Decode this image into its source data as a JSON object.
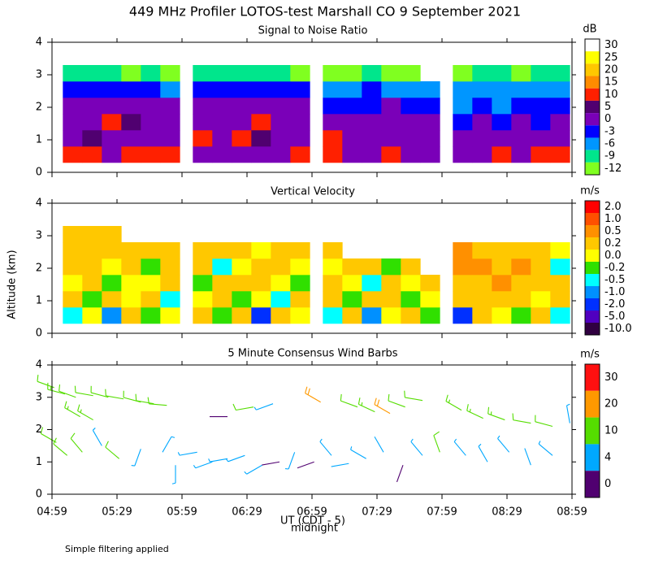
{
  "title": "449 MHz Profiler LOTOS-test Marshall CO  9 September 2021",
  "ylabel": "Altitude (km)",
  "xlabel": "UT (CDT - 5)",
  "xlabel_sub": "midnight",
  "footnote": "Simple filtering applied",
  "chart_data": [
    {
      "type": "heatmap",
      "title": "Signal to Noise Ratio",
      "xlim": [
        299,
        539
      ],
      "xticks": [
        299,
        329,
        359,
        389,
        419,
        449,
        479,
        509,
        539
      ],
      "ylim": [
        0,
        4
      ],
      "yticks": [
        0,
        1,
        2,
        3,
        4
      ],
      "xbins": [
        304,
        313,
        322,
        331,
        340,
        349,
        358,
        364,
        373,
        382,
        391,
        400,
        409,
        418,
        424,
        433,
        442,
        451,
        460,
        469,
        478,
        484,
        493,
        502,
        511,
        520,
        529,
        538
      ],
      "ybins": [
        0.3,
        0.8,
        1.3,
        1.8,
        2.3,
        2.8,
        3.3
      ],
      "values": [
        [
          12,
          4,
          3,
          2,
          -3,
          -9
        ],
        [
          13,
          5,
          4,
          1,
          -2,
          -8
        ],
        [
          4,
          3,
          13,
          3,
          -1,
          -9
        ],
        [
          10,
          2,
          5,
          4,
          -3,
          -10
        ],
        [
          11,
          4,
          3,
          2,
          -2,
          -9
        ],
        [
          14,
          3,
          4,
          3,
          -4,
          -10
        ],
        null,
        [
          3,
          11,
          2,
          4,
          -1,
          -8
        ],
        [
          2,
          4,
          3,
          2,
          -2,
          -9
        ],
        [
          4,
          12,
          3,
          1,
          -3,
          -7
        ],
        [
          3,
          5,
          11,
          2,
          -1,
          -8
        ],
        [
          2,
          4,
          3,
          3,
          -2,
          -9
        ],
        [
          13,
          3,
          2,
          1,
          -3,
          -10
        ],
        null,
        [
          12,
          11,
          3,
          -1,
          -4,
          -10
        ],
        [
          4,
          3,
          2,
          -2,
          -5,
          -11
        ],
        [
          3,
          2,
          3,
          -1,
          -3,
          -9
        ],
        [
          12,
          4,
          2,
          1,
          -4,
          -10
        ],
        [
          3,
          2,
          1,
          -2,
          -5,
          -11
        ],
        [
          4,
          3,
          2,
          -1,
          -4,
          null
        ],
        null,
        [
          3,
          2,
          -2,
          -4,
          -6,
          -10
        ],
        [
          4,
          3,
          1,
          -3,
          -5,
          -9
        ],
        [
          12,
          2,
          -1,
          -4,
          -6,
          -9
        ],
        [
          3,
          4,
          0,
          -3,
          -5,
          -10
        ],
        [
          11,
          3,
          -2,
          -2,
          -4,
          -9
        ],
        [
          13,
          4,
          2,
          -1,
          -4,
          -9
        ]
      ],
      "colorbar": {
        "label": "dB",
        "ticks": [
          30,
          25,
          20,
          15,
          10,
          5,
          0,
          -3,
          -6,
          -9,
          -12
        ],
        "colors": [
          "#ffffff",
          "#ffff00",
          "#ffc800",
          "#ff8c00",
          "#ff2000",
          "#500070",
          "#7a00b8",
          "#0000ff",
          "#0096ff",
          "#00e68c",
          "#80ff20"
        ]
      }
    },
    {
      "type": "heatmap",
      "title": "Vertical Velocity",
      "xlim": [
        299,
        539
      ],
      "xticks": [
        299,
        329,
        359,
        389,
        419,
        449,
        479,
        509,
        539
      ],
      "ylim": [
        0,
        4
      ],
      "yticks": [
        0,
        1,
        2,
        3,
        4
      ],
      "xbins": [
        304,
        313,
        322,
        331,
        340,
        349,
        358,
        364,
        373,
        382,
        391,
        400,
        409,
        418,
        424,
        433,
        442,
        451,
        460,
        469,
        478,
        484,
        493,
        502,
        511,
        520,
        529,
        538
      ],
      "ybins": [
        0.3,
        0.8,
        1.3,
        1.8,
        2.3,
        2.8,
        3.3
      ],
      "values": [
        [
          -0.3,
          0.2,
          0.1,
          0.3,
          0.4,
          0.3
        ],
        [
          0.1,
          -0.1,
          0.3,
          0.2,
          0.3,
          0.4
        ],
        [
          -0.6,
          0.3,
          -0.2,
          0.1,
          0.4,
          0.3
        ],
        [
          0.2,
          0.1,
          0.0,
          0.3,
          0.2,
          null
        ],
        [
          -0.2,
          0.3,
          0.1,
          -0.1,
          0.3,
          null
        ],
        [
          0.1,
          -0.3,
          0.2,
          0.4,
          0.3,
          null
        ],
        null,
        [
          0.3,
          0.1,
          -0.1,
          0.2,
          0.3,
          null
        ],
        [
          -0.1,
          0.4,
          0.2,
          -0.3,
          0.2,
          null
        ],
        [
          0.2,
          -0.2,
          0.3,
          0.1,
          0.4,
          null
        ],
        [
          -1.2,
          0.1,
          0.3,
          0.2,
          0.1,
          null
        ],
        [
          0.3,
          -0.4,
          0.1,
          0.3,
          0.2,
          null
        ],
        [
          0.1,
          0.2,
          -0.2,
          0.1,
          0.3,
          null
        ],
        null,
        [
          -0.3,
          0.2,
          0.3,
          0.1,
          0.4,
          null
        ],
        [
          0.2,
          -0.1,
          0.1,
          0.3,
          null,
          null
        ],
        [
          -0.7,
          0.3,
          -0.3,
          0.2,
          null,
          null
        ],
        [
          0.1,
          0.2,
          0.4,
          -0.2,
          null,
          null
        ],
        [
          0.3,
          -0.2,
          0.1,
          0.3,
          null,
          null
        ],
        [
          -0.1,
          0.1,
          0.2,
          null,
          null,
          null
        ],
        null,
        [
          -1.5,
          0.3,
          0.4,
          0.5,
          0.6,
          null
        ],
        [
          0.2,
          0.4,
          0.3,
          0.6,
          0.4,
          null
        ],
        [
          0.1,
          0.3,
          0.5,
          0.4,
          0.3,
          null
        ],
        [
          -0.2,
          0.4,
          0.2,
          0.5,
          0.3,
          null
        ],
        [
          0.3,
          0.1,
          0.4,
          0.3,
          0.2,
          null
        ],
        [
          -0.4,
          0.2,
          0.3,
          -0.3,
          0.1,
          null
        ]
      ],
      "colorbar": {
        "label": "m/s",
        "ticks": [
          {
            "value": 2,
            "label": "2.0"
          },
          {
            "value": 1,
            "label": "1.0"
          },
          0.5,
          0.2,
          {
            "value": 0,
            "label": "0.0"
          },
          -0.2,
          -0.5,
          {
            "value": -1,
            "label": "-1.0"
          },
          {
            "value": -2,
            "label": "-2.0"
          },
          {
            "value": -5,
            "label": "-5.0"
          },
          {
            "value": -10,
            "label": "-10.0"
          }
        ],
        "colors": [
          "#ff0000",
          "#ff5000",
          "#ff9000",
          "#ffc800",
          "#ffff00",
          "#30e000",
          "#00ffff",
          "#0090ff",
          "#0030ff",
          "#5000c0",
          "#300040"
        ]
      }
    },
    {
      "type": "barbs",
      "title": "5 Minute Consensus Wind Barbs",
      "xlim": [
        299,
        539
      ],
      "xticks": [
        {
          "value": 299,
          "label": "04:59"
        },
        {
          "value": 329,
          "label": "05:29"
        },
        {
          "value": 359,
          "label": "05:59"
        },
        {
          "value": 389,
          "label": "06:29"
        },
        {
          "value": 419,
          "label": "06:59"
        },
        {
          "value": 449,
          "label": "07:29"
        },
        {
          "value": 479,
          "label": "07:59"
        },
        {
          "value": 509,
          "label": "08:29"
        },
        {
          "value": 539,
          "label": "08:59"
        }
      ],
      "ylim": [
        0,
        4
      ],
      "yticks": [
        0,
        1,
        2,
        3,
        4
      ],
      "x": [
        300,
        305,
        310,
        318,
        325,
        332,
        340,
        346,
        352,
        312,
        318,
        380,
        392,
        401,
        423,
        440,
        448,
        455,
        462,
        470,
        488,
        498,
        508,
        520,
        530,
        538,
        301,
        306,
        313,
        322,
        330,
        340,
        350,
        356,
        366,
        373,
        380,
        388,
        396,
        404,
        411,
        420,
        428,
        436,
        444,
        452,
        461,
        470,
        478,
        490,
        500,
        510,
        520,
        530
      ],
      "y": [
        3.3,
        3.1,
        3.0,
        3.05,
        3.0,
        2.95,
        2.85,
        2.8,
        2.75,
        2.4,
        2.3,
        2.4,
        2.7,
        2.8,
        2.85,
        2.7,
        2.55,
        2.5,
        2.7,
        2.9,
        2.6,
        2.35,
        2.3,
        2.2,
        2.1,
        2.2,
        1.6,
        1.2,
        1.3,
        1.5,
        1.1,
        1.4,
        1.3,
        0.9,
        1.3,
        1.0,
        1.1,
        1.2,
        0.9,
        1.0,
        1.3,
        1.0,
        1.2,
        0.95,
        1.1,
        1.3,
        0.9,
        1.2,
        1.3,
        1.2,
        1.0,
        1.3,
        0.9,
        1.2
      ],
      "speed": [
        14,
        15,
        13,
        14,
        13,
        12,
        13,
        12,
        11,
        18,
        19,
        3,
        10,
        8,
        20,
        12,
        16,
        20,
        14,
        10,
        18,
        18,
        17,
        10,
        12,
        6,
        10,
        11,
        12,
        8,
        12,
        6,
        9,
        6,
        7,
        8,
        9,
        7,
        6,
        3,
        5,
        3,
        9,
        4,
        5,
        4,
        3,
        8,
        10,
        6,
        5,
        8,
        4,
        9
      ],
      "direction": [
        290,
        285,
        290,
        280,
        285,
        280,
        285,
        280,
        275,
        300,
        300,
        270,
        260,
        250,
        300,
        290,
        295,
        300,
        290,
        280,
        300,
        295,
        290,
        280,
        285,
        350,
        300,
        310,
        320,
        330,
        310,
        200,
        30,
        180,
        260,
        250,
        260,
        250,
        240,
        260,
        200,
        250,
        320,
        260,
        300,
        330,
        200,
        320,
        340,
        320,
        330,
        320,
        340,
        310
      ],
      "colorbar": {
        "label": "m/s",
        "ticks": [
          30,
          20,
          10,
          4,
          0
        ],
        "colors": [
          "#ff1010",
          "#ff9900",
          "#55dd00",
          "#00a8ff",
          "#500070"
        ]
      }
    }
  ]
}
